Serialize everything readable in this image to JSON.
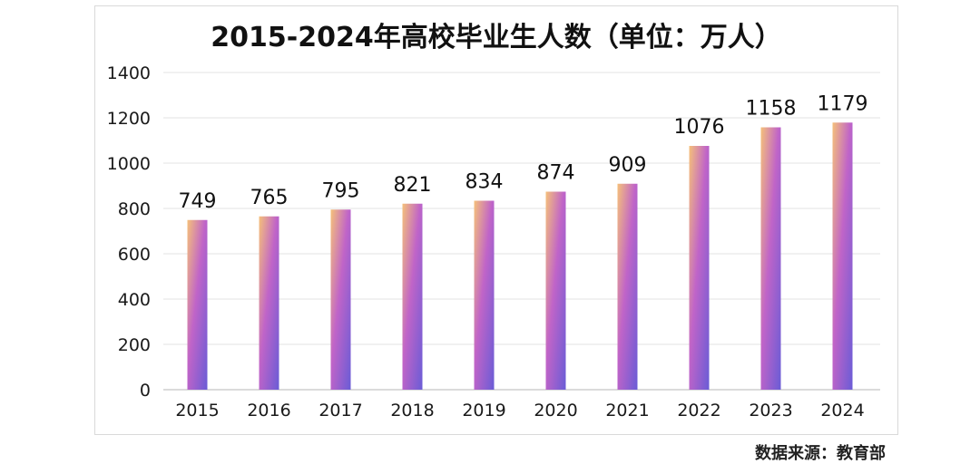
{
  "chart_data": {
    "type": "bar",
    "title": "2015-2024年高校毕业生人数（单位：万人）",
    "xlabel": "",
    "ylabel": "",
    "categories": [
      "2015",
      "2016",
      "2017",
      "2018",
      "2019",
      "2020",
      "2021",
      "2022",
      "2023",
      "2024"
    ],
    "values": [
      749,
      765,
      795,
      821,
      834,
      874,
      909,
      1076,
      1158,
      1179
    ],
    "ylim": [
      0,
      1400
    ],
    "yticks": [
      0,
      200,
      400,
      600,
      800,
      1000,
      1200,
      1400
    ],
    "grid": true,
    "legend": "none",
    "data_labels": true,
    "bar_gradient": {
      "top": "#f5c07a",
      "middle": "#c064c8",
      "bottom": "#6a5cd6"
    },
    "gridline_color": "#e3e3e3"
  },
  "source": "数据来源：教育部"
}
